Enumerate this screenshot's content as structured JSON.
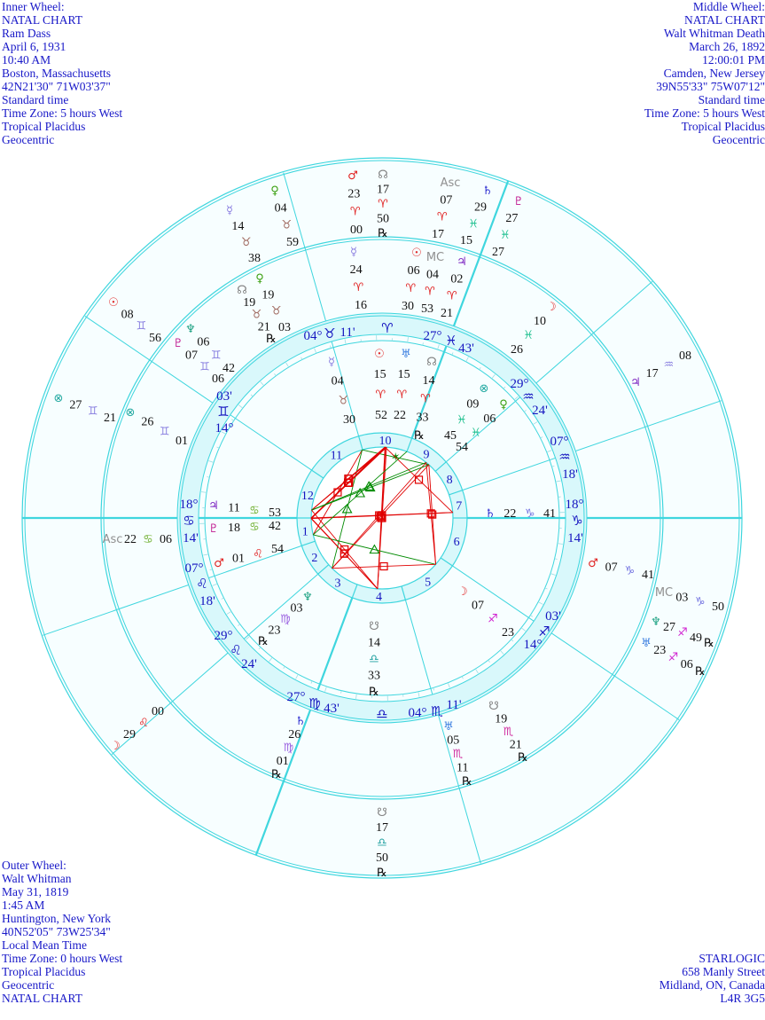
{
  "header_left": {
    "lines": [
      "Inner Wheel:",
      "NATAL CHART",
      "Ram Dass",
      "April 6, 1931",
      "10:40 AM",
      "Boston, Massachusetts",
      "42N21'30\"  71W03'37\"",
      "Standard time",
      "Time Zone: 5 hours West",
      "Tropical Placidus",
      "Geocentric"
    ]
  },
  "header_right": {
    "lines": [
      "Middle Wheel:",
      "NATAL CHART",
      "Walt Whitman Death",
      "March 26, 1892",
      "12:00:01 PM",
      "Camden, New Jersey",
      "39N55'33\"  75W07'12\"",
      "Standard time",
      "Time Zone: 5 hours West",
      "Tropical Placidus",
      "Geocentric"
    ]
  },
  "footer_left": {
    "lines": [
      "Outer Wheel:",
      "Walt Whitman",
      "May 31, 1819",
      "1:45 AM",
      "Huntington, New York",
      "40N52'05\"  73W25'34\"",
      "Local Mean Time",
      "Time Zone: 0 hours West",
      "Tropical Placidus",
      "Geocentric",
      "NATAL CHART"
    ]
  },
  "footer_right": {
    "lines": [
      "STARLOGIC",
      "658 Manly Street",
      "Midland, ON, Canada",
      "L4R 3G5"
    ]
  },
  "colors": {
    "ring_line": "#3fd6de",
    "band_fill": "#d9f8fb",
    "chart_bg": "#f7feff",
    "text_blue": "#1818c8",
    "aspect_hard": "#e00000",
    "aspect_soft": "#008a00",
    "aspect_minor": "#0000e0"
  },
  "glyph_colors": {
    "☉": "#e02828",
    "☽": "#e02828",
    "☿": "#8a7ee0",
    "♀": "#3aa010",
    "♂": "#e02020",
    "♃": "#7a20c0",
    "♄": "#2a2ad0",
    "♅": "#3a7ee0",
    "♆": "#18a080",
    "♇": "#c01890",
    "☊": "#808080",
    "☋": "#808080",
    "⊗": "#20a8a0",
    "Asc": "#909090",
    "MC": "#909090"
  },
  "sign_colors": {
    "♈": "#e02020",
    "♉": "#a06a60",
    "♊": "#8a80e0",
    "♋": "#70b030",
    "♌": "#e02020",
    "♍": "#9a60e0",
    "♎": "#20a0a0",
    "♏": "#d030a0",
    "♐": "#d020d0",
    "♑": "#7070e0",
    "♒": "#8a80e0",
    "♓": "#20c090"
  },
  "house_cusps": [
    {
      "house": "1",
      "deg": "18°",
      "sign": "♋",
      "min": "14'"
    },
    {
      "house": "2",
      "deg": "07°",
      "sign": "♌",
      "min": "18'"
    },
    {
      "house": "3",
      "deg": "29°",
      "sign": "♌",
      "min": "24'"
    },
    {
      "house": "4",
      "deg": "27°",
      "sign": "♍",
      "min": "43'"
    },
    {
      "house": "5",
      "deg": "04°",
      "sign": "♏",
      "min": "11'"
    },
    {
      "house": "6",
      "deg": "14°",
      "sign": "♐",
      "min": "03'"
    },
    {
      "house": "7",
      "deg": "18°",
      "sign": "♑",
      "min": "14'"
    },
    {
      "house": "8",
      "deg": "07°",
      "sign": "♒",
      "min": "18'"
    },
    {
      "house": "9",
      "deg": "29°",
      "sign": "♒",
      "min": "24'"
    },
    {
      "house": "10",
      "deg": "27°",
      "sign": "♓",
      "min": "43'"
    },
    {
      "house": "11",
      "deg": "04°",
      "sign": "♉",
      "min": "11'"
    },
    {
      "house": "12",
      "deg": "14°",
      "sign": "♊",
      "min": "03'"
    }
  ],
  "intercepted_signs": [
    "♈",
    "♎"
  ],
  "inner_wheel": {
    "planets": [
      {
        "body": "Mercury",
        "glyph": "☿",
        "deg": "04",
        "sign": "♉",
        "min": "30",
        "retro": ""
      },
      {
        "body": "Sun",
        "glyph": "☉",
        "deg": "15",
        "sign": "♈",
        "min": "52",
        "retro": ""
      },
      {
        "body": "Uranus",
        "glyph": "♅",
        "deg": "15",
        "sign": "♈",
        "min": "22",
        "retro": ""
      },
      {
        "body": "North Node",
        "glyph": "☊",
        "deg": "14",
        "sign": "♈",
        "min": "33",
        "retro": "℞"
      },
      {
        "body": "Part of Fortune",
        "glyph": "⊗",
        "deg": "09",
        "sign": "♓",
        "min": "45",
        "retro": ""
      },
      {
        "body": "Venus",
        "glyph": "♀",
        "deg": "06",
        "sign": "♓",
        "min": "54",
        "retro": ""
      },
      {
        "body": "Saturn",
        "glyph": "♄",
        "deg": "22",
        "sign": "♑",
        "min": "41",
        "retro": ""
      },
      {
        "body": "Jupiter",
        "glyph": "♃",
        "deg": "11",
        "sign": "♋",
        "min": "53",
        "retro": ""
      },
      {
        "body": "Pluto",
        "glyph": "♇",
        "deg": "18",
        "sign": "♋",
        "min": "42",
        "retro": ""
      },
      {
        "body": "Mars",
        "glyph": "♂",
        "deg": "01",
        "sign": "♌",
        "min": "54",
        "retro": ""
      },
      {
        "body": "Neptune",
        "glyph": "♆",
        "deg": "03",
        "sign": "♍",
        "min": "23",
        "retro": "℞"
      },
      {
        "body": "South Node",
        "glyph": "☋",
        "deg": "14",
        "sign": "♎",
        "min": "33",
        "retro": "℞"
      },
      {
        "body": "Moon",
        "glyph": "☽",
        "deg": "07",
        "sign": "♐",
        "min": "23",
        "retro": ""
      }
    ]
  },
  "middle_wheel": {
    "planets": [
      {
        "body": "Mercury",
        "glyph": "☿",
        "deg": "24",
        "sign": "♈",
        "min": "16",
        "retro": ""
      },
      {
        "body": "Sun",
        "glyph": "☉",
        "deg": "06",
        "sign": "♈",
        "min": "30",
        "retro": ""
      },
      {
        "body": "Midheaven",
        "glyph": "MC",
        "deg": "04",
        "sign": "♈",
        "min": "53",
        "retro": ""
      },
      {
        "body": "Jupiter",
        "glyph": "♃",
        "deg": "02",
        "sign": "♈",
        "min": "21",
        "retro": ""
      },
      {
        "body": "Moon",
        "glyph": "☽",
        "deg": "10",
        "sign": "♓",
        "min": "26",
        "retro": ""
      },
      {
        "body": "Mars",
        "glyph": "♂",
        "deg": "07",
        "sign": "♑",
        "min": "41",
        "retro": ""
      },
      {
        "body": "South Node",
        "glyph": "☋",
        "deg": "19",
        "sign": "♏",
        "min": "21",
        "retro": "℞"
      },
      {
        "body": "Uranus",
        "glyph": "♅",
        "deg": "05",
        "sign": "♏",
        "min": "11",
        "retro": "℞"
      },
      {
        "body": "Saturn",
        "glyph": "♄",
        "deg": "26",
        "sign": "♍",
        "min": "01",
        "retro": "℞"
      },
      {
        "body": "Ascendant",
        "glyph": "Asc",
        "deg": "22",
        "sign": "♋",
        "min": "06",
        "retro": ""
      },
      {
        "body": "Part of Fortune",
        "glyph": "⊗",
        "deg": "26",
        "sign": "♊",
        "min": "01",
        "retro": ""
      },
      {
        "body": "Neptune",
        "glyph": "♆",
        "deg": "06",
        "sign": "♊",
        "min": "42",
        "retro": ""
      },
      {
        "body": "Pluto",
        "glyph": "♇",
        "deg": "07",
        "sign": "♊",
        "min": "06",
        "retro": ""
      },
      {
        "body": "North Node",
        "glyph": "☊",
        "deg": "19",
        "sign": "♉",
        "min": "21",
        "retro": "℞"
      },
      {
        "body": "Venus",
        "glyph": "♀",
        "deg": "19",
        "sign": "♉",
        "min": "03",
        "retro": ""
      }
    ]
  },
  "outer_wheel": {
    "planets": [
      {
        "body": "Mars",
        "glyph": "♂",
        "deg": "23",
        "sign": "♈",
        "min": "00",
        "retro": ""
      },
      {
        "body": "North Node",
        "glyph": "☊",
        "deg": "17",
        "sign": "♈",
        "min": "50",
        "retro": "℞"
      },
      {
        "body": "Ascendant",
        "glyph": "Asc",
        "deg": "07",
        "sign": "♈",
        "min": "17",
        "retro": ""
      },
      {
        "body": "Saturn",
        "glyph": "♄",
        "deg": "29",
        "sign": "♓",
        "min": "15",
        "retro": ""
      },
      {
        "body": "Pluto",
        "glyph": "♇",
        "deg": "27",
        "sign": "♓",
        "min": "27",
        "retro": ""
      },
      {
        "body": "Jupiter",
        "glyph": "♃",
        "deg": "17",
        "sign": "♒",
        "min": "08",
        "retro": ""
      },
      {
        "body": "Midheaven",
        "glyph": "MC",
        "deg": "03",
        "sign": "♑",
        "min": "50",
        "retro": ""
      },
      {
        "body": "Neptune",
        "glyph": "♆",
        "deg": "27",
        "sign": "♐",
        "min": "49",
        "retro": "℞"
      },
      {
        "body": "Uranus",
        "glyph": "♅",
        "deg": "23",
        "sign": "♐",
        "min": "06",
        "retro": "℞"
      },
      {
        "body": "South Node",
        "glyph": "☋",
        "deg": "17",
        "sign": "♎",
        "min": "50",
        "retro": "℞"
      },
      {
        "body": "Moon",
        "glyph": "☽",
        "deg": "29",
        "sign": "♌",
        "min": "00",
        "retro": ""
      },
      {
        "body": "Part of Fortune",
        "glyph": "⊗",
        "deg": "27",
        "sign": "♊",
        "min": "21",
        "retro": ""
      },
      {
        "body": "Sun",
        "glyph": "☉",
        "deg": "08",
        "sign": "♊",
        "min": "56",
        "retro": ""
      },
      {
        "body": "Mercury",
        "glyph": "☿",
        "deg": "14",
        "sign": "♉",
        "min": "38",
        "retro": ""
      },
      {
        "body": "Venus",
        "glyph": "♀",
        "deg": "04",
        "sign": "♉",
        "min": "59",
        "retro": ""
      }
    ]
  }
}
